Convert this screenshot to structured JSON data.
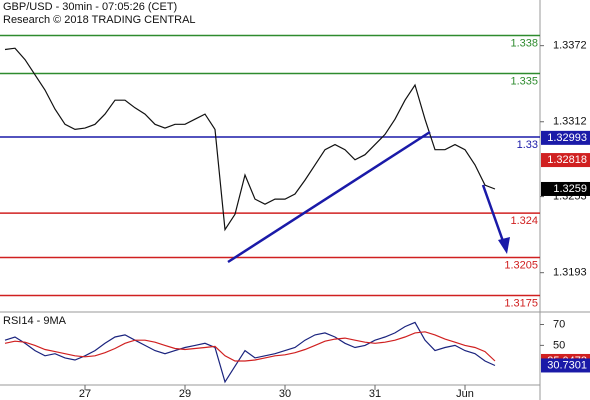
{
  "chart_data": [
    {
      "type": "line",
      "title": "GBP/USD - 30min - 07:05:26 (CET)",
      "subtitle": "Research © 2018 TRADING CENTRAL",
      "series": [
        {
          "name": "GBP/USD",
          "color": "#111111",
          "values": [
            1.3369,
            1.337,
            1.3361,
            1.3349,
            1.3337,
            1.3322,
            1.331,
            1.3306,
            1.3307,
            1.331,
            1.3318,
            1.3329,
            1.3329,
            1.3323,
            1.3318,
            1.331,
            1.3307,
            1.331,
            1.331,
            1.3314,
            1.3318,
            1.3306,
            1.3227,
            1.3239,
            1.327,
            1.3251,
            1.3247,
            1.3251,
            1.3251,
            1.3255,
            1.3266,
            1.3278,
            1.329,
            1.3294,
            1.329,
            1.3282,
            1.3286,
            1.3294,
            1.3302,
            1.3314,
            1.3329,
            1.3341,
            1.3314,
            1.329,
            1.329,
            1.3294,
            1.329,
            1.3278,
            1.3262,
            1.3259
          ]
        }
      ],
      "ylim": [
        1.3162,
        1.3408
      ],
      "yticks": [
        1.3372,
        1.3312,
        1.3253,
        1.3193
      ],
      "levels": [
        {
          "value": 1.338,
          "color": "#2e8b2e"
        },
        {
          "value": 1.335,
          "color": "#2e8b2e"
        },
        {
          "value": 1.33,
          "color": "#1a1aa8"
        },
        {
          "value": 1.324,
          "color": "#d02020"
        },
        {
          "value": 1.3205,
          "color": "#d02020"
        },
        {
          "value": 1.3175,
          "color": "#d02020"
        }
      ],
      "markers": [
        {
          "value": 1.32993,
          "color": "#1a1aa8"
        },
        {
          "value": 1.32818,
          "color": "#d02020"
        },
        {
          "value": 1.3259,
          "color": "#000000"
        }
      ]
    },
    {
      "type": "line",
      "title": "RSI14 - 9MA",
      "categories": [
        null,
        null,
        null,
        null,
        null,
        null,
        null,
        null,
        "27",
        null,
        null,
        null,
        null,
        null,
        null,
        null,
        null,
        null,
        "29",
        null,
        null,
        null,
        null,
        null,
        null,
        null,
        null,
        null,
        "30",
        null,
        null,
        null,
        null,
        null,
        null,
        null,
        null,
        "31",
        null,
        null,
        null,
        null,
        null,
        null,
        null,
        null,
        "Jun",
        null,
        null,
        null
      ],
      "series": [
        {
          "name": "RSI14",
          "color": "#1a237e",
          "values": [
            55,
            58,
            52,
            45,
            40,
            42,
            38,
            36,
            40,
            45,
            52,
            58,
            60,
            55,
            50,
            45,
            42,
            45,
            48,
            50,
            52,
            48,
            15,
            30,
            45,
            38,
            40,
            42,
            45,
            48,
            55,
            60,
            62,
            58,
            52,
            48,
            50,
            55,
            58,
            62,
            68,
            72,
            55,
            45,
            48,
            50,
            45,
            42,
            35,
            30.7301
          ]
        },
        {
          "name": "9MA",
          "color": "#d02020",
          "values": [
            52,
            54,
            53,
            50,
            46,
            44,
            42,
            40,
            39,
            40,
            43,
            47,
            52,
            55,
            55,
            53,
            50,
            47,
            46,
            47,
            48,
            49,
            40,
            35,
            35,
            36,
            38,
            40,
            41,
            43,
            46,
            50,
            54,
            56,
            57,
            55,
            53,
            52,
            53,
            55,
            58,
            62,
            63,
            60,
            56,
            53,
            50,
            48,
            44,
            35.0473
          ]
        }
      ],
      "ylim": [
        12,
        82
      ],
      "yticks": [
        70,
        50
      ],
      "markers": [
        {
          "value": 35.0473,
          "color": "#d02020"
        },
        {
          "value": 30.7301,
          "color": "#1a1aa8"
        }
      ]
    }
  ]
}
